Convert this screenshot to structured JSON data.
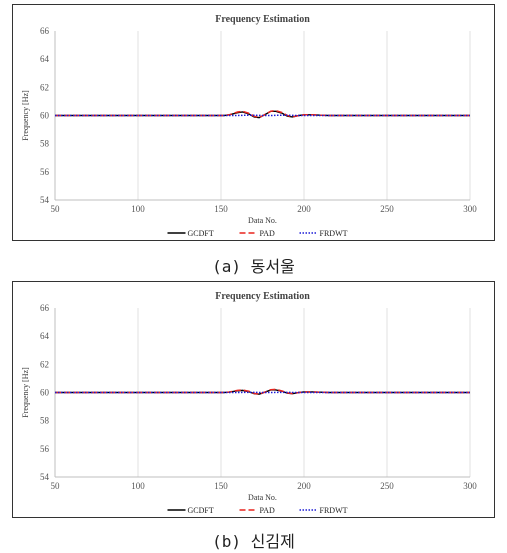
{
  "chart_data": [
    {
      "type": "line",
      "title": "Frequency Estimation",
      "xlabel": "Data No.",
      "ylabel": "Frequency [Hz]",
      "xlim": [
        50,
        300
      ],
      "ylim": [
        54,
        66
      ],
      "xticks": [
        50,
        100,
        150,
        200,
        250,
        300
      ],
      "yticks": [
        54,
        56,
        58,
        60,
        62,
        64,
        66
      ],
      "grid": "vertical",
      "legend": "bottom",
      "caption": "(a) 동서울",
      "series": [
        {
          "name": "GCDFT",
          "color": "#000000",
          "dash": "solid",
          "x": [
            50,
            100,
            150,
            152,
            155,
            160,
            163,
            167,
            170,
            173,
            177,
            180,
            183,
            187,
            190,
            193,
            197,
            200,
            205,
            210,
            215,
            220,
            250,
            300
          ],
          "y": [
            60,
            60,
            60,
            60,
            60.05,
            60.2,
            60.25,
            60.1,
            59.9,
            59.85,
            60.1,
            60.3,
            60.3,
            60.15,
            59.95,
            59.9,
            60,
            60.05,
            60.05,
            60.02,
            60,
            60,
            60,
            60
          ]
        },
        {
          "name": "PAD",
          "color": "#e8241d",
          "dash": "dashed",
          "x": [
            50,
            100,
            150,
            152,
            155,
            160,
            163,
            167,
            170,
            173,
            177,
            180,
            183,
            187,
            190,
            193,
            197,
            200,
            205,
            210,
            215,
            220,
            250,
            300
          ],
          "y": [
            60,
            60,
            60,
            60,
            60.05,
            60.25,
            60.3,
            60.15,
            59.95,
            59.85,
            60.1,
            60.3,
            60.35,
            60.2,
            60,
            59.9,
            60,
            60.05,
            60.05,
            60.02,
            60,
            60,
            60,
            60
          ]
        },
        {
          "name": "FRDWT",
          "color": "#1b1bd6",
          "dash": "dotted",
          "x": [
            50,
            100,
            150,
            155,
            160,
            165,
            170,
            175,
            180,
            185,
            190,
            195,
            200,
            210,
            220,
            250,
            300
          ],
          "y": [
            60,
            60,
            60,
            60,
            60,
            60.02,
            60.02,
            60,
            60,
            60.02,
            60.02,
            60,
            60,
            60,
            60,
            60,
            60
          ]
        }
      ]
    },
    {
      "type": "line",
      "title": "Frequency Estimation",
      "xlabel": "Data No.",
      "ylabel": "Frequency [Hz]",
      "xlim": [
        50,
        300
      ],
      "ylim": [
        54,
        66
      ],
      "xticks": [
        50,
        100,
        150,
        200,
        250,
        300
      ],
      "yticks": [
        54,
        56,
        58,
        60,
        62,
        64,
        66
      ],
      "grid": "vertical",
      "legend": "bottom",
      "caption": "(b) 신김제",
      "series": [
        {
          "name": "GCDFT",
          "color": "#000000",
          "dash": "solid",
          "x": [
            50,
            100,
            150,
            152,
            155,
            160,
            163,
            167,
            170,
            173,
            177,
            180,
            183,
            187,
            190,
            193,
            197,
            200,
            205,
            210,
            215,
            220,
            250,
            300
          ],
          "y": [
            60,
            60,
            60,
            60,
            60.03,
            60.12,
            60.15,
            60.05,
            59.92,
            59.88,
            60.05,
            60.18,
            60.18,
            60.08,
            59.95,
            59.92,
            60,
            60.04,
            60.04,
            60.02,
            60,
            60,
            60,
            60
          ]
        },
        {
          "name": "PAD",
          "color": "#e8241d",
          "dash": "dashed",
          "x": [
            50,
            100,
            150,
            152,
            155,
            160,
            163,
            167,
            170,
            173,
            177,
            180,
            183,
            187,
            190,
            193,
            197,
            200,
            205,
            210,
            215,
            220,
            250,
            300
          ],
          "y": [
            60,
            60,
            60,
            60,
            60.04,
            60.15,
            60.18,
            60.08,
            59.94,
            59.88,
            60.05,
            60.2,
            60.22,
            60.1,
            59.97,
            59.92,
            60,
            60.04,
            60.04,
            60.02,
            60,
            60,
            60,
            60
          ]
        },
        {
          "name": "FRDWT",
          "color": "#1b1bd6",
          "dash": "dotted",
          "x": [
            50,
            100,
            150,
            155,
            160,
            165,
            170,
            175,
            180,
            185,
            190,
            195,
            200,
            210,
            220,
            250,
            300
          ],
          "y": [
            60,
            60,
            60,
            60,
            60,
            60.01,
            60.01,
            60,
            60,
            60.01,
            60.01,
            60,
            60,
            60,
            60,
            60,
            60
          ]
        }
      ]
    }
  ]
}
